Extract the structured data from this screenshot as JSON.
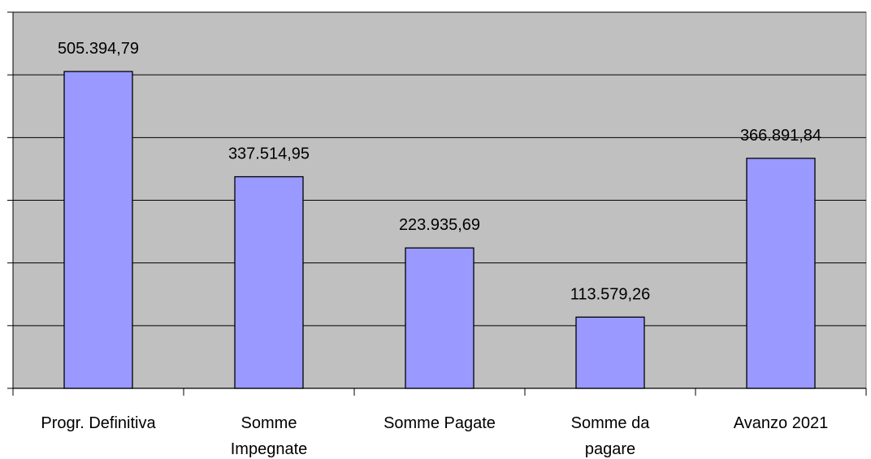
{
  "chart_data": {
    "type": "bar",
    "categories": [
      "Progr. Definitiva",
      "Somme Impegnate",
      "Somme Pagate",
      "Somme da pagare",
      "Avanzo 2021"
    ],
    "values": [
      505394.79,
      337514.95,
      223935.69,
      113579.26,
      366891.84
    ],
    "value_labels": [
      "505.394,79",
      "337.514,95",
      "223.935,69",
      "113.579,26",
      "366.891,84"
    ],
    "color": "#9999ff",
    "ylim": [
      0,
      600000
    ],
    "yticks": [
      0,
      100000,
      200000,
      300000,
      400000,
      500000,
      600000
    ],
    "grid": true
  }
}
